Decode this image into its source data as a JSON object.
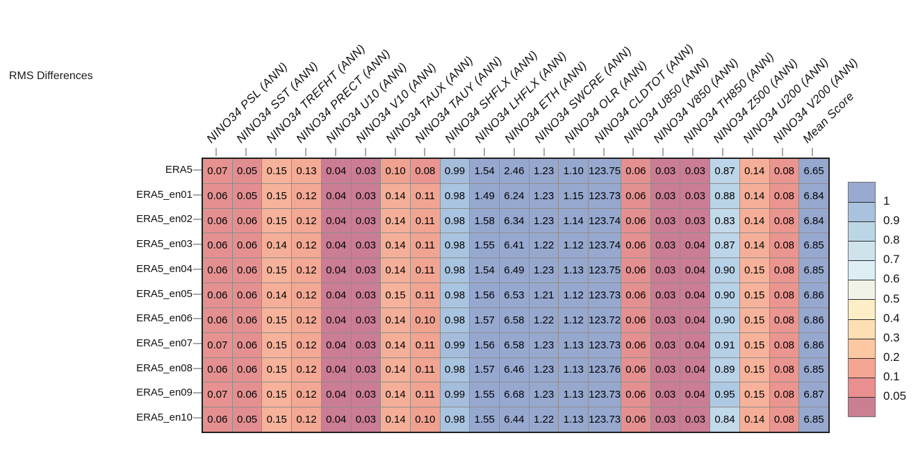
{
  "title": "RMS Differences",
  "chart_data": {
    "type": "heatmap",
    "title": "RMS Differences",
    "columns": [
      "NINO34 PSL (ANN)",
      "NINO34 SST (ANN)",
      "NINO34 TREFHT (ANN)",
      "NINO34 PRECT (ANN)",
      "NINO34 U10 (ANN)",
      "NINO34 V10 (ANN)",
      "NINO34 TAUX (ANN)",
      "NINO34 TAUY (ANN)",
      "NINO34 SHFLX (ANN)",
      "NINO34 LHFLX (ANN)",
      "NINO34 ETH (ANN)",
      "NINO34 SWCRE (ANN)",
      "NINO34 OLR (ANN)",
      "NINO34 CLDTOT (ANN)",
      "NINO34 U850 (ANN)",
      "NINO34 V850 (ANN)",
      "NINO34 TH850 (ANN)",
      "NINO34 Z500 (ANN)",
      "NINO34 U200 (ANN)",
      "NINO34 V200 (ANN)",
      "Mean Score"
    ],
    "rows": [
      "ERA5",
      "ERA5_en01",
      "ERA5_en02",
      "ERA5_en03",
      "ERA5_en04",
      "ERA5_en05",
      "ERA5_en06",
      "ERA5_en07",
      "ERA5_en08",
      "ERA5_en09",
      "ERA5_en10"
    ],
    "values": [
      [
        "0.07",
        "0.05",
        "0.15",
        "0.13",
        "0.04",
        "0.03",
        "0.10",
        "0.08",
        "0.99",
        "1.54",
        "2.46",
        "1.23",
        "1.10",
        "123.75",
        "0.06",
        "0.03",
        "0.03",
        "0.87",
        "0.14",
        "0.08",
        "6.65"
      ],
      [
        "0.06",
        "0.05",
        "0.15",
        "0.12",
        "0.04",
        "0.03",
        "0.14",
        "0.11",
        "0.98",
        "1.49",
        "6.24",
        "1.23",
        "1.15",
        "123.73",
        "0.06",
        "0.03",
        "0.03",
        "0.88",
        "0.14",
        "0.08",
        "6.84"
      ],
      [
        "0.06",
        "0.06",
        "0.15",
        "0.12",
        "0.04",
        "0.03",
        "0.14",
        "0.11",
        "0.98",
        "1.58",
        "6.34",
        "1.23",
        "1.14",
        "123.74",
        "0.06",
        "0.03",
        "0.03",
        "0.83",
        "0.14",
        "0.08",
        "6.84"
      ],
      [
        "0.06",
        "0.06",
        "0.14",
        "0.12",
        "0.04",
        "0.03",
        "0.14",
        "0.11",
        "0.98",
        "1.55",
        "6.41",
        "1.22",
        "1.12",
        "123.74",
        "0.06",
        "0.03",
        "0.04",
        "0.87",
        "0.14",
        "0.08",
        "6.85"
      ],
      [
        "0.06",
        "0.06",
        "0.15",
        "0.12",
        "0.04",
        "0.03",
        "0.14",
        "0.11",
        "0.98",
        "1.54",
        "6.49",
        "1.23",
        "1.13",
        "123.75",
        "0.06",
        "0.03",
        "0.04",
        "0.90",
        "0.15",
        "0.08",
        "6.85"
      ],
      [
        "0.06",
        "0.06",
        "0.14",
        "0.12",
        "0.04",
        "0.03",
        "0.15",
        "0.11",
        "0.98",
        "1.56",
        "6.53",
        "1.21",
        "1.12",
        "123.73",
        "0.06",
        "0.03",
        "0.04",
        "0.90",
        "0.15",
        "0.08",
        "6.86"
      ],
      [
        "0.06",
        "0.06",
        "0.15",
        "0.12",
        "0.04",
        "0.03",
        "0.14",
        "0.10",
        "0.98",
        "1.57",
        "6.58",
        "1.22",
        "1.12",
        "123.72",
        "0.06",
        "0.03",
        "0.04",
        "0.90",
        "0.15",
        "0.08",
        "6.86"
      ],
      [
        "0.07",
        "0.06",
        "0.15",
        "0.12",
        "0.04",
        "0.03",
        "0.14",
        "0.11",
        "0.99",
        "1.56",
        "6.58",
        "1.23",
        "1.13",
        "123.73",
        "0.06",
        "0.03",
        "0.04",
        "0.91",
        "0.15",
        "0.08",
        "6.86"
      ],
      [
        "0.06",
        "0.06",
        "0.15",
        "0.12",
        "0.04",
        "0.03",
        "0.14",
        "0.11",
        "0.98",
        "1.57",
        "6.46",
        "1.23",
        "1.13",
        "123.76",
        "0.06",
        "0.03",
        "0.04",
        "0.89",
        "0.15",
        "0.08",
        "6.85"
      ],
      [
        "0.07",
        "0.06",
        "0.15",
        "0.12",
        "0.04",
        "0.03",
        "0.14",
        "0.11",
        "0.99",
        "1.55",
        "6.68",
        "1.23",
        "1.13",
        "123.73",
        "0.06",
        "0.03",
        "0.04",
        "0.95",
        "0.15",
        "0.08",
        "6.87"
      ],
      [
        "0.06",
        "0.05",
        "0.15",
        "0.12",
        "0.04",
        "0.03",
        "0.14",
        "0.10",
        "0.98",
        "1.55",
        "6.44",
        "1.22",
        "1.13",
        "123.73",
        "0.06",
        "0.03",
        "0.03",
        "0.84",
        "0.14",
        "0.08",
        "6.85"
      ]
    ],
    "legend": {
      "position": "right",
      "boundary_labels": [
        "1",
        "0.9",
        "0.8",
        "0.7",
        "0.6",
        "0.5",
        "0.4",
        "0.3",
        "0.2",
        "0.1",
        "0.05"
      ],
      "band_colors": [
        "#99a9d0",
        "#a9c2dd",
        "#bcd6e6",
        "#cfe3ec",
        "#ddeef4",
        "#f1f3e6",
        "#fdeec8",
        "#fddfb4",
        "#fbc8a2",
        "#f4a693",
        "#e98f8f",
        "#cb7f93"
      ]
    },
    "color_scale_anchors": [
      [
        0.04,
        "#ca7d94"
      ],
      [
        0.05,
        "#e28d90"
      ],
      [
        0.08,
        "#ea9590"
      ],
      [
        0.1,
        "#f0a190"
      ],
      [
        0.15,
        "#f6b29a"
      ],
      [
        0.2,
        "#f9c2a2"
      ],
      [
        0.3,
        "#fbd5ac"
      ],
      [
        0.4,
        "#fce5bd"
      ],
      [
        0.5,
        "#f6efd4"
      ],
      [
        0.6,
        "#e9f2ec"
      ],
      [
        0.7,
        "#d9ecf2"
      ],
      [
        0.8,
        "#c8deeb"
      ],
      [
        0.9,
        "#b7d1e6"
      ],
      [
        0.98,
        "#a9c4e0"
      ],
      [
        1.0,
        "#a0b4d6"
      ],
      [
        1.1,
        "#97a8cf"
      ]
    ],
    "grid_color": "#8c8c8c",
    "border_color": "#1f1f1f"
  }
}
